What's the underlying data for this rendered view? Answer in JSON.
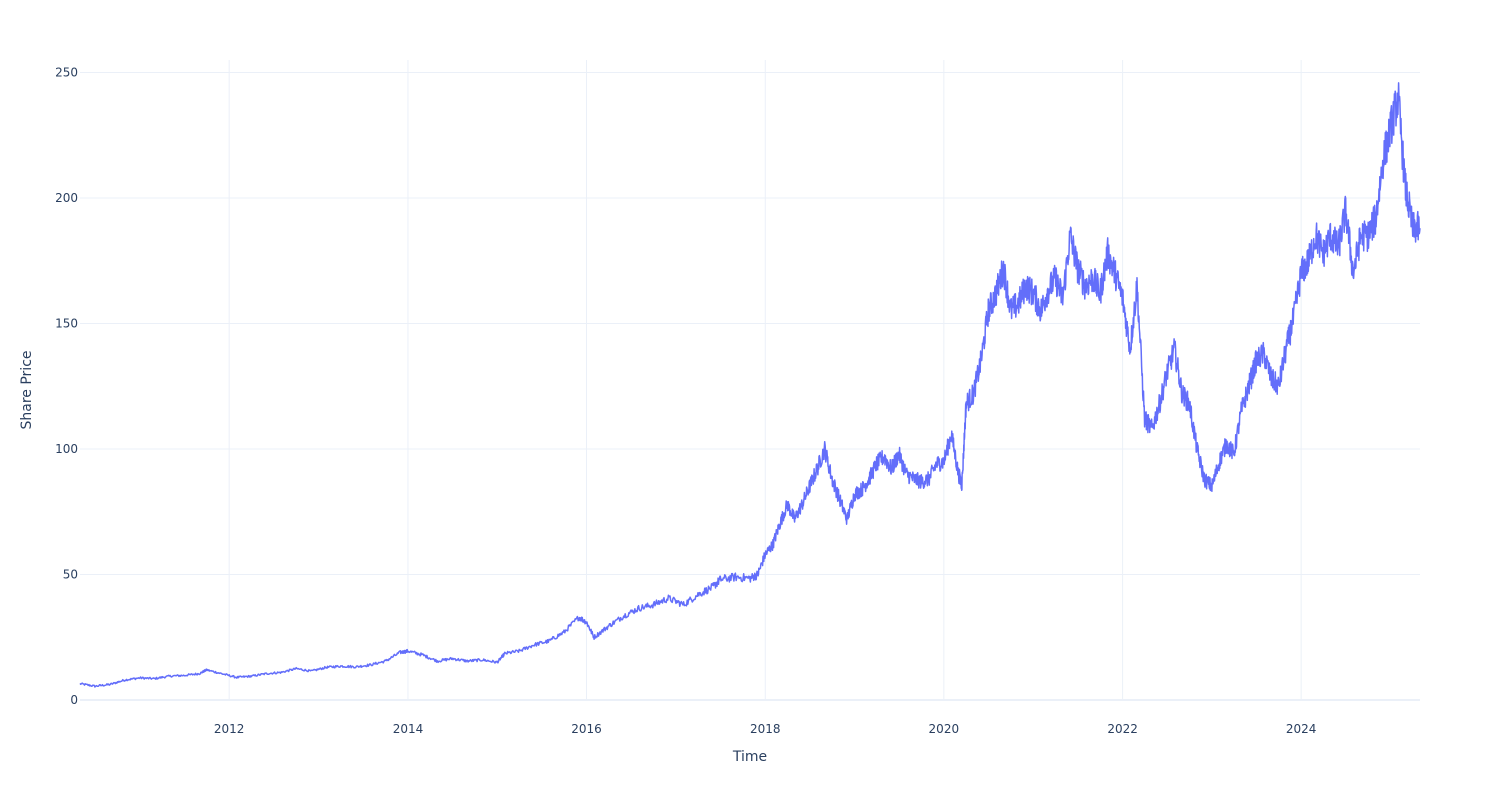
{
  "chart_data": {
    "type": "line",
    "title": "",
    "xlabel": "Time",
    "ylabel": "Share Price",
    "x_ticks": [
      "2012",
      "2014",
      "2016",
      "2018",
      "2020",
      "2022",
      "2024"
    ],
    "y_ticks": [
      "0",
      "50",
      "100",
      "150",
      "200",
      "250"
    ],
    "xlim": [
      "2010-05-01",
      "2025-05-01"
    ],
    "ylim": [
      0,
      255
    ],
    "grid": true,
    "legend": "none",
    "line_color": "#636efa",
    "series": [
      {
        "x": [
          "2010-05-01",
          "2010-07-01",
          "2010-09-01",
          "2010-11-01",
          "2011-01-01",
          "2011-03-01",
          "2011-05-01",
          "2011-07-01",
          "2011-09-01",
          "2011-10-01",
          "2011-12-01",
          "2012-02-01",
          "2012-04-01",
          "2012-06-01",
          "2012-08-01",
          "2012-10-01",
          "2012-12-01",
          "2013-02-01",
          "2013-04-01",
          "2013-06-01",
          "2013-08-01",
          "2013-10-01",
          "2013-12-01",
          "2014-01-01",
          "2014-03-01",
          "2014-05-01",
          "2014-07-01",
          "2014-09-01",
          "2014-11-01",
          "2015-01-01",
          "2015-02-01",
          "2015-04-01",
          "2015-06-01",
          "2015-08-01",
          "2015-10-01",
          "2015-12-01",
          "2016-01-01",
          "2016-02-01",
          "2016-04-01",
          "2016-06-01",
          "2016-08-01",
          "2016-10-01",
          "2016-12-01",
          "2017-02-01",
          "2017-04-01",
          "2017-06-01",
          "2017-07-01",
          "2017-09-01",
          "2017-11-01",
          "2017-12-01",
          "2018-01-01",
          "2018-02-01",
          "2018-03-01",
          "2018-04-01",
          "2018-05-01",
          "2018-06-01",
          "2018-07-01",
          "2018-08-01",
          "2018-09-01",
          "2018-10-01",
          "2018-11-01",
          "2018-12-01",
          "2019-01-01",
          "2019-02-01",
          "2019-03-01",
          "2019-04-01",
          "2019-05-01",
          "2019-06-01",
          "2019-07-01",
          "2019-08-01",
          "2019-09-01",
          "2019-10-01",
          "2019-11-01",
          "2019-12-01",
          "2020-01-01",
          "2020-02-01",
          "2020-03-01",
          "2020-03-15",
          "2020-04-01",
          "2020-05-01",
          "2020-06-01",
          "2020-07-01",
          "2020-08-01",
          "2020-09-01",
          "2020-10-01",
          "2020-11-01",
          "2020-12-01",
          "2021-01-01",
          "2021-02-01",
          "2021-03-01",
          "2021-04-01",
          "2021-05-01",
          "2021-06-01",
          "2021-07-01",
          "2021-08-01",
          "2021-09-01",
          "2021-10-01",
          "2021-11-01",
          "2021-12-01",
          "2022-01-01",
          "2022-02-01",
          "2022-03-01",
          "2022-04-01",
          "2022-05-01",
          "2022-06-01",
          "2022-07-01",
          "2022-08-01",
          "2022-09-01",
          "2022-10-01",
          "2022-11-01",
          "2022-12-01",
          "2023-01-01",
          "2023-02-01",
          "2023-03-01",
          "2023-04-01",
          "2023-05-01",
          "2023-06-01",
          "2023-07-01",
          "2023-08-01",
          "2023-09-01",
          "2023-10-01",
          "2023-11-01",
          "2023-12-01",
          "2024-01-01",
          "2024-02-01",
          "2024-03-01",
          "2024-04-01",
          "2024-05-01",
          "2024-06-01",
          "2024-07-01",
          "2024-08-01",
          "2024-09-01",
          "2024-10-01",
          "2024-11-01",
          "2024-12-01",
          "2025-01-01",
          "2025-02-01",
          "2025-03-01",
          "2025-04-01",
          "2025-05-01"
        ],
        "y": [
          6.5,
          5.5,
          6.2,
          8.0,
          8.8,
          8.5,
          9.5,
          9.8,
          10.5,
          12.0,
          10.5,
          9.0,
          9.5,
          10.5,
          11.0,
          12.5,
          11.5,
          13.0,
          13.5,
          13.2,
          14.0,
          15.5,
          19.0,
          19.5,
          18.0,
          15.5,
          16.5,
          15.5,
          16.0,
          15.0,
          18.5,
          19.5,
          22.0,
          23.5,
          27.0,
          33.0,
          31.0,
          25.0,
          29.5,
          33.5,
          36.5,
          38.0,
          40.5,
          38.0,
          42.0,
          45.0,
          48.0,
          49.0,
          48.5,
          50.0,
          58.0,
          62.0,
          70.0,
          78.0,
          72.0,
          78.0,
          85.0,
          92.0,
          100.0,
          88.0,
          80.0,
          72.0,
          82.0,
          84.0,
          88.0,
          94.0,
          97.0,
          92.0,
          98.0,
          90.0,
          88.0,
          87.0,
          88.0,
          94.0,
          95.0,
          106.0,
          90.0,
          86.0,
          118.0,
          122.0,
          135.0,
          155.0,
          162.0,
          172.0,
          155.0,
          158.0,
          165.0,
          162.0,
          155.0,
          163.0,
          168.0,
          160.0,
          185.0,
          172.0,
          165.0,
          168.0,
          162.0,
          178.0,
          170.0,
          160.0,
          140.0,
          165.0,
          112.0,
          108.0,
          118.0,
          130.0,
          140.0,
          122.0,
          118.0,
          100.0,
          88.0,
          85.0,
          95.0,
          102.0,
          98.0,
          115.0,
          125.0,
          135.0,
          138.0,
          128.0,
          125.0,
          140.0,
          152.0,
          170.0,
          175.0,
          185.0,
          178.0,
          185.0,
          180.0,
          195.0,
          170.0,
          185.0,
          185.0,
          192.0,
          215.0,
          228.0,
          240.0,
          205.0,
          188.0,
          188.0
        ]
      }
    ]
  }
}
